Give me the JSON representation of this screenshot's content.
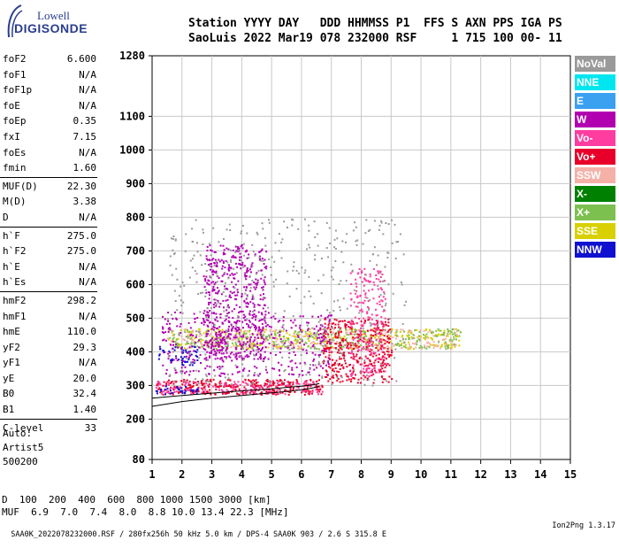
{
  "logo": {
    "line1": "Lowell",
    "line2": "DIGISONDE"
  },
  "header": {
    "line1": "Station YYYY DAY   DDD HHMMSS P1  FFS S AXN PPS IGA PS",
    "line2": "SaoLuis 2022 Mar19 078 232000 RSF     1 715 100 00- 11"
  },
  "params": [
    {
      "name": "foF2",
      "value": "6.600"
    },
    {
      "name": "foF1",
      "value": "N/A"
    },
    {
      "name": "foF1p",
      "value": "N/A"
    },
    {
      "name": "foE",
      "value": "N/A"
    },
    {
      "name": "foEp",
      "value": "0.35"
    },
    {
      "name": "fxI",
      "value": "7.15"
    },
    {
      "name": "foEs",
      "value": "N/A"
    },
    {
      "name": "fmin",
      "value": "1.60"
    },
    {
      "name": "MUF(D)",
      "value": "22.30"
    },
    {
      "name": "M(D)",
      "value": "3.38"
    },
    {
      "name": "D",
      "value": "N/A"
    },
    {
      "name": "h`F",
      "value": "275.0"
    },
    {
      "name": "h`F2",
      "value": "275.0"
    },
    {
      "name": "h`E",
      "value": "N/A"
    },
    {
      "name": "h`Es",
      "value": "N/A"
    },
    {
      "name": "hmF2",
      "value": "298.2"
    },
    {
      "name": "hmF1",
      "value": "N/A"
    },
    {
      "name": "hmE",
      "value": "110.0"
    },
    {
      "name": "yF2",
      "value": "29.3"
    },
    {
      "name": "yF1",
      "value": "N/A"
    },
    {
      "name": "yE",
      "value": "20.0"
    },
    {
      "name": "B0",
      "value": "32.4"
    },
    {
      "name": "B1",
      "value": "1.40"
    },
    {
      "name": "C-level",
      "value": "33"
    }
  ],
  "auto": {
    "line1": "Auto:",
    "line2": "Artist5",
    "line3": "500200"
  },
  "legend": [
    {
      "label": "NoVal",
      "color": "#9a9a9a"
    },
    {
      "label": "NNE",
      "color": "#00e6f0"
    },
    {
      "label": "E",
      "color": "#3aa0f0"
    },
    {
      "label": "W",
      "color": "#b000b0"
    },
    {
      "label": "Vo-",
      "color": "#ff3ca0"
    },
    {
      "label": "Vo+",
      "color": "#e8002a"
    },
    {
      "label": "SSW",
      "color": "#f5b0a8"
    },
    {
      "label": "X-",
      "color": "#008000"
    },
    {
      "label": "X+",
      "color": "#7cc050"
    },
    {
      "label": "SSE",
      "color": "#d8d000"
    },
    {
      "label": "NNW",
      "color": "#1010d0"
    }
  ],
  "footer": {
    "d_label": "D",
    "d_values": "  100  200  400  600  800 1000 1500 3000 [km]",
    "muf_label": "MUF",
    "muf_values": "  6.9  7.0  7.4  8.0  8.8 10.0 13.4 22.3 [MHz]"
  },
  "bottom": {
    "text": "SAA0K_2022078232000.RSF / 280fx256h 50 kHz 5.0 km / DPS-4 SAA0K 903 / 2.6 S 315.8 E",
    "version": "Ion2Png 1.3.17"
  },
  "chart_data": {
    "type": "scatter",
    "xlabel": "",
    "ylabel": "",
    "xlim": [
      1,
      15
    ],
    "ylim": [
      80,
      1280
    ],
    "x_ticks": [
      1,
      2,
      3,
      4,
      5,
      6,
      7,
      8,
      9,
      10,
      11,
      12,
      13,
      14,
      15
    ],
    "y_ticks": [
      80,
      200,
      300,
      400,
      500,
      600,
      700,
      800,
      900,
      1000,
      1100,
      1280
    ],
    "grid": true,
    "clusters": [
      {
        "x": [
          1.1,
          6.7
        ],
        "y": [
          275,
          320
        ],
        "color": "#e8002a",
        "density": 0.9
      },
      {
        "x": [
          1.1,
          6.7
        ],
        "y": [
          275,
          315
        ],
        "color": "#ff3ca0",
        "density": 0.5
      },
      {
        "x": [
          1.1,
          2.6
        ],
        "y": [
          275,
          300
        ],
        "color": "#1010d0",
        "density": 0.6
      },
      {
        "x": [
          1.5,
          11.3
        ],
        "y": [
          410,
          470
        ],
        "color": "#d8d000",
        "density": 0.4
      },
      {
        "x": [
          1.5,
          11.3
        ],
        "y": [
          410,
          470
        ],
        "color": "#f5b0a8",
        "density": 0.4
      },
      {
        "x": [
          1.5,
          11.3
        ],
        "y": [
          410,
          470
        ],
        "color": "#7cc050",
        "density": 0.3
      },
      {
        "x": [
          2.7,
          4.8
        ],
        "y": [
          380,
          720
        ],
        "color": "#b000b0",
        "density": 0.5
      },
      {
        "x": [
          1.2,
          2.5
        ],
        "y": [
          360,
          420
        ],
        "color": "#1010d0",
        "density": 0.5
      },
      {
        "x": [
          6.7,
          9.0
        ],
        "y": [
          310,
          500
        ],
        "color": "#e8002a",
        "density": 0.6
      },
      {
        "x": [
          7.6,
          8.8
        ],
        "y": [
          330,
          650
        ],
        "color": "#ff3ca0",
        "density": 0.4
      },
      {
        "x": [
          1.3,
          7.0
        ],
        "y": [
          330,
          520
        ],
        "color": "#b000b0",
        "density": 0.25
      },
      {
        "x": [
          1.5,
          9.5
        ],
        "y": [
          300,
          800
        ],
        "color": "#9a9a9a",
        "density": 0.08
      }
    ],
    "profile_curve": {
      "frequency_mhz": [
        1.0,
        2.0,
        3.0,
        4.0,
        5.0,
        5.6,
        6.0,
        6.3,
        6.5,
        6.6
      ],
      "height_km": [
        238,
        252,
        262,
        270,
        278,
        283,
        287,
        291,
        295,
        298.2
      ]
    },
    "profile_curve_2": {
      "frequency_mhz": [
        1.0,
        2.0,
        3.0,
        4.0,
        5.0,
        5.6,
        6.0,
        6.3,
        6.5,
        6.6
      ],
      "height_km": [
        262,
        270,
        277,
        284,
        290,
        295,
        298,
        301,
        304,
        306
      ]
    }
  }
}
